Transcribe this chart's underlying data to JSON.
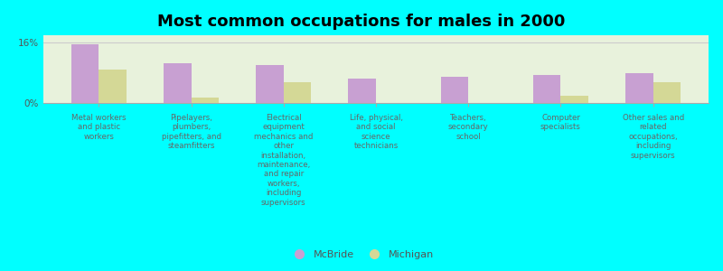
{
  "title": "Most common occupations for males in 2000",
  "categories": [
    "Metal workers\nand plastic\nworkers",
    "Pipelayers,\nplumbers,\npipefitters, and\nsteamfitters",
    "Electrical\nequipment\nmechanics and\nother\ninstallation,\nmaintenance,\nand repair\nworkers,\nincluding\nsupervisors",
    "Life, physical,\nand social\nscience\ntechnicians",
    "Teachers,\nsecondary\nschool",
    "Computer\nspecialists",
    "Other sales and\nrelated\noccupations,\nincluding\nsupervisors"
  ],
  "mcbride_values": [
    15.5,
    10.5,
    10.0,
    6.5,
    7.0,
    7.5,
    8.0
  ],
  "michigan_values": [
    9.0,
    1.5,
    5.5,
    0.0,
    0.0,
    2.0,
    5.5
  ],
  "mcbride_color": "#c8a0d2",
  "michigan_color": "#d4d896",
  "background_color": "#00ffff",
  "plot_bg_color": "#e8f2dc",
  "ylabel_16": "16%",
  "ylabel_0": "0%",
  "ylim_max": 18,
  "legend_mcbride": "McBride",
  "legend_michigan": "Michigan",
  "title_fontsize": 13,
  "label_fontsize": 6.2,
  "bar_width": 0.3
}
